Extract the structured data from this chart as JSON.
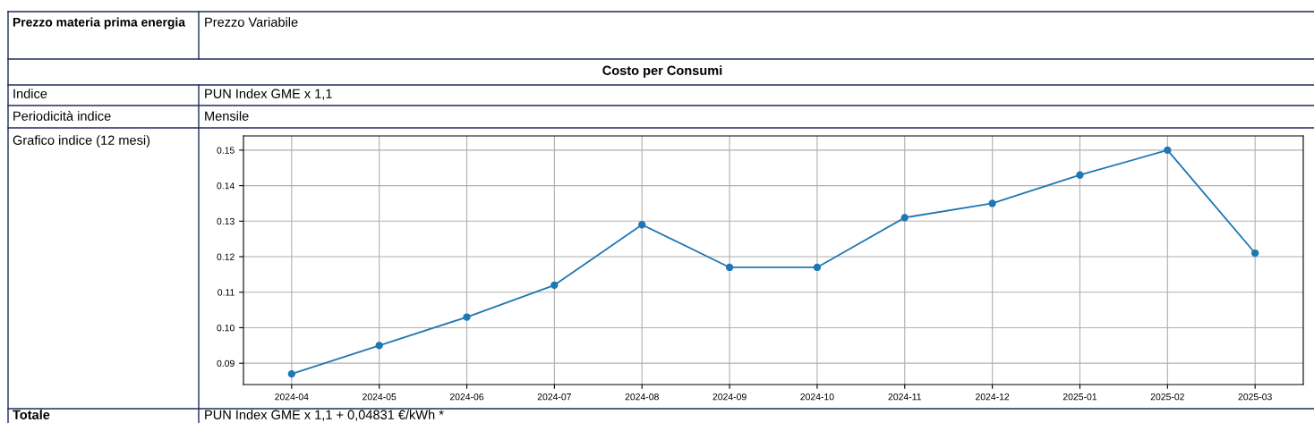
{
  "chart_data": {
    "type": "line",
    "annotations": [
      "Prezzo materia prima energia",
      "Prezzo Variabile",
      "Costo per Consumi",
      "Indice",
      "PUN Index GME x 1,1",
      "Periodicità indice",
      "Mensile",
      "Grafico indice (12 mesi)",
      "Totale",
      "PUN Index GME x 1,1 + 0,04831 €/kWh *"
    ],
    "categories": [
      "2024-04",
      "2024-05",
      "2024-06",
      "2024-07",
      "2024-08",
      "2024-09",
      "2024-10",
      "2024-11",
      "2024-12",
      "2025-01",
      "2025-02",
      "2025-03"
    ],
    "series": [
      {
        "color": "#1f77b4",
        "values": [
          0.087,
          0.095,
          0.103,
          0.112,
          0.129,
          0.117,
          0.117,
          0.131,
          0.135,
          0.143,
          0.15,
          0.121
        ]
      }
    ],
    "ylim": [
      0.084,
      0.154
    ],
    "yticks": [
      {
        "value": 0.09,
        "label": "0.09"
      },
      {
        "value": 0.1,
        "label": "0.10"
      },
      {
        "value": 0.11,
        "label": "0.11"
      },
      {
        "value": 0.12,
        "label": "0.12"
      },
      {
        "value": 0.13,
        "label": "0.13"
      },
      {
        "value": 0.14,
        "label": "0.14"
      },
      {
        "value": 0.15,
        "label": "0.15"
      }
    ],
    "grid": true,
    "marker": "circle",
    "line_style": "solid"
  }
}
